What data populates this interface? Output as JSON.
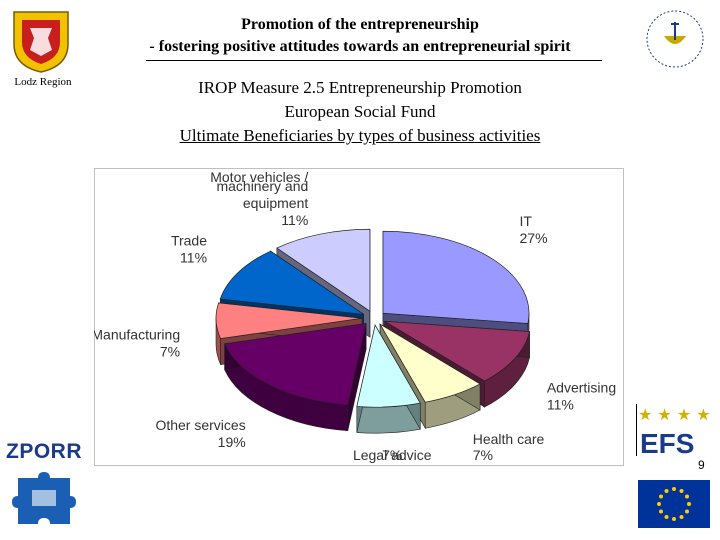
{
  "header": {
    "title_line1": "Promotion of the entrepreneurship",
    "title_line2": "- fostering positive attitudes towards an entrepreneurial spirit",
    "region_label": "Lodz Region"
  },
  "subtitle": {
    "line1": "IROP Measure 2.5 Entrepreneurship Promotion",
    "line2": "European Social Fund",
    "line3": "Ultimate Beneficiaries by types of business activities"
  },
  "logos": {
    "zporr": "ZPORR",
    "efs": "EFS"
  },
  "page_number": "9",
  "chart_data": {
    "type": "pie",
    "slices": [
      {
        "label_lines": [
          "IT"
        ],
        "pct_label": "27%",
        "value": 27,
        "color": "#9999ff"
      },
      {
        "label_lines": [
          "Advertising"
        ],
        "pct_label": "11%",
        "value": 11,
        "color": "#993366"
      },
      {
        "label_lines": [
          "Health care"
        ],
        "pct_label": "7%",
        "value": 7,
        "color": "#ffffcc"
      },
      {
        "label_lines": [
          "Legal advice"
        ],
        "pct_label": "7%",
        "value": 7,
        "color": "#ccffff"
      },
      {
        "label_lines": [
          "Other services"
        ],
        "pct_label": "19%",
        "value": 19,
        "color": "#660066"
      },
      {
        "label_lines": [
          "Manufacturing"
        ],
        "pct_label": "7%",
        "value": 7,
        "color": "#ff8080"
      },
      {
        "label_lines": [
          "Trade"
        ],
        "pct_label": "11%",
        "value": 11,
        "color": "#0066cc"
      },
      {
        "label_lines": [
          "Motor vehicles /",
          "machinery and",
          "equipment"
        ],
        "pct_label": "11%",
        "value": 11,
        "color": "#ccccff"
      }
    ]
  }
}
